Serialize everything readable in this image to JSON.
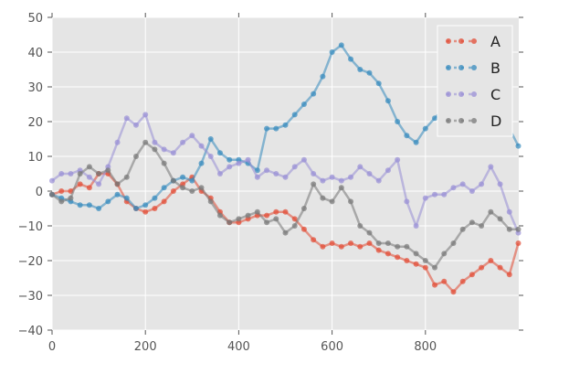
{
  "chart_data": {
    "type": "line",
    "title": "",
    "xlabel": "",
    "ylabel": "",
    "xlim": [
      0,
      1000
    ],
    "ylim": [
      -40,
      50
    ],
    "xticks": [
      0,
      200,
      400,
      600,
      800
    ],
    "xtick_labels": [
      "0",
      "200",
      "400",
      "600",
      "800"
    ],
    "yticks": [
      -40,
      -30,
      -20,
      -10,
      0,
      10,
      20,
      30,
      40,
      50
    ],
    "ytick_labels": [
      "−40",
      "−30",
      "−20",
      "−10",
      "0",
      "10",
      "20",
      "30",
      "40",
      "50"
    ],
    "grid": true,
    "background": "#e5e5e5",
    "legend_position": "top-right",
    "x": [
      0,
      20,
      40,
      60,
      80,
      100,
      120,
      140,
      160,
      180,
      200,
      220,
      240,
      260,
      280,
      300,
      320,
      340,
      360,
      380,
      400,
      420,
      440,
      460,
      480,
      500,
      520,
      540,
      560,
      580,
      600,
      620,
      640,
      660,
      680,
      700,
      720,
      740,
      760,
      780,
      800,
      820,
      840,
      860,
      880,
      900,
      920,
      940,
      960,
      980,
      999
    ],
    "series": [
      {
        "name": "A",
        "color": "#e24a33",
        "values": [
          -1,
          0,
          0,
          2,
          1,
          5,
          5,
          2,
          -3,
          -5,
          -6,
          -5,
          -3,
          0,
          2,
          4,
          0,
          -2,
          -6,
          -9,
          -9,
          -8,
          -7,
          -7,
          -6,
          -6,
          -8,
          -11,
          -14,
          -16,
          -15,
          -16,
          -15,
          -16,
          -15,
          -17,
          -18,
          -19,
          -20,
          -21,
          -22,
          -27,
          -26,
          -29,
          -26,
          -24,
          -22,
          -20,
          -22,
          -24,
          -15
        ]
      },
      {
        "name": "B",
        "color": "#348abd",
        "values": [
          -1,
          -2,
          -3,
          -4,
          -4,
          -5,
          -3,
          -1,
          -2,
          -5,
          -4,
          -2,
          1,
          3,
          4,
          3,
          8,
          15,
          11,
          9,
          9,
          8,
          6,
          18,
          18,
          19,
          22,
          25,
          28,
          33,
          40,
          42,
          38,
          35,
          34,
          31,
          26,
          20,
          16,
          14,
          18,
          21,
          24,
          28,
          33,
          36,
          34,
          27,
          22,
          18,
          13
        ]
      },
      {
        "name": "C",
        "color": "#988ed5",
        "values": [
          3,
          5,
          5,
          6,
          4,
          2,
          7,
          14,
          21,
          19,
          22,
          14,
          12,
          11,
          14,
          16,
          13,
          10,
          5,
          7,
          8,
          9,
          4,
          6,
          5,
          4,
          7,
          9,
          5,
          3,
          4,
          3,
          4,
          7,
          5,
          3,
          6,
          9,
          -3,
          -10,
          -2,
          -1,
          -1,
          1,
          2,
          0,
          2,
          7,
          2,
          -6,
          -12
        ]
      },
      {
        "name": "D",
        "color": "#777777",
        "values": [
          -1,
          -3,
          -2,
          5,
          7,
          5,
          6,
          2,
          4,
          10,
          14,
          12,
          8,
          3,
          1,
          0,
          1,
          -3,
          -7,
          -9,
          -8,
          -7,
          -6,
          -9,
          -8,
          -12,
          -10,
          -5,
          2,
          -2,
          -3,
          1,
          -3,
          -10,
          -12,
          -15,
          -15,
          -16,
          -16,
          -18,
          -20,
          -22,
          -18,
          -15,
          -11,
          -9,
          -10,
          -6,
          -8,
          -11,
          -11
        ]
      }
    ]
  },
  "legend": {
    "items": [
      {
        "label": "A",
        "color": "#e24a33"
      },
      {
        "label": "B",
        "color": "#348abd"
      },
      {
        "label": "C",
        "color": "#988ed5"
      },
      {
        "label": "D",
        "color": "#777777"
      }
    ]
  }
}
